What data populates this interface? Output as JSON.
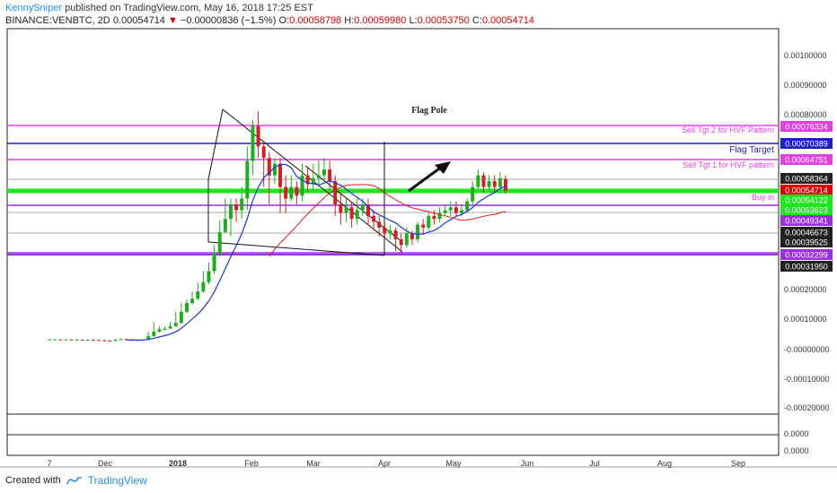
{
  "header": {
    "author": "KennySniper",
    "published_text": "published on TradingView.com, May 16, 2018 17:25 EST",
    "symbol": "BINANCE:VENBTC, 2D",
    "last_price": "0.00054714",
    "change": "−0.00000836 (−1.5%)",
    "open_label": "O:",
    "open": "0.00058798",
    "high_label": "H:",
    "high": "0.00059980",
    "low_label": "L:",
    "low": "0.00053750",
    "close_label": "C:",
    "close": "0.00054714"
  },
  "footer": {
    "created_with": "Created with",
    "brand": "TradingView"
  },
  "colors": {
    "magenta": "#e040e0",
    "blue": "#1f1fbf",
    "green": "#1ee61e",
    "red": "#dd0000",
    "purple": "#9b2fe0",
    "up": "#22aa22",
    "down": "#cc2222",
    "ma_blue": "#1a35d6",
    "ma_red": "#e01c1c"
  },
  "chart_data": {
    "type": "candlestick",
    "y_ticks": [
      "0.00100000",
      "0.00090000",
      "0.00080000",
      "0.00020000",
      "0.00010000",
      "-0.00000000",
      "-0.00010000",
      "-0.00020000"
    ],
    "sub_ticks": [
      "0.0000",
      "0.0000"
    ],
    "x_ticks": [
      "7",
      "Dec",
      "2018",
      "Feb",
      "Mar",
      "Apr",
      "May",
      "Jun",
      "Jul",
      "Aug",
      "Sep"
    ],
    "annotations": {
      "flag_pole": "Flag Pole"
    },
    "levels": [
      {
        "label": "Sell Tgt 2 for HVF Pattern",
        "value": "0.00076334",
        "color": "#e040e0"
      },
      {
        "label": "Flag Target",
        "value": "0.00070389",
        "color": "#1f1fbf"
      },
      {
        "label": "Sell Tgt 1 for HVF pattern",
        "value": "0.00064751",
        "color": "#e040e0"
      },
      {
        "label": "Buy in",
        "value": "0.00054122",
        "color": "#1ee61e"
      },
      {
        "label": "",
        "value": "0.00032299",
        "color": "#9b2fe0"
      }
    ],
    "price_tags": [
      {
        "value": "0.00076334",
        "bg": "#e040e0"
      },
      {
        "value": "0.00070389",
        "bg": "#1f1fbf"
      },
      {
        "value": "0.00064751",
        "bg": "#e040e0"
      },
      {
        "value": "0.00058364",
        "bg": "#222222"
      },
      {
        "value": "0.00054714",
        "bg": "#dd0000"
      },
      {
        "value": "0.00054122",
        "bg": "#1ee61e"
      },
      {
        "value": "0.00053623",
        "bg": "#1ee61e"
      },
      {
        "value": "0.00049341",
        "bg": "#9b2fe0"
      },
      {
        "value": "0.00046673",
        "bg": "#222222"
      },
      {
        "value": "0.00039525",
        "bg": "#222222"
      },
      {
        "value": "0.00032299",
        "bg": "#9b2fe0"
      },
      {
        "value": "0.00031950",
        "bg": "#222222"
      }
    ],
    "candles_note_unit": "price in BTC",
    "candles": [
      [
        3.4e-05,
        3.5e-05,
        3.6e-05,
        3.3e-05
      ],
      [
        3.5e-05,
        3.5e-05,
        3.6e-05,
        3.4e-05
      ],
      [
        3.5e-05,
        3.4e-05,
        3.6e-05,
        3.3e-05
      ],
      [
        3.4e-05,
        3.5e-05,
        3.6e-05,
        3.4e-05
      ],
      [
        3.5e-05,
        3.4e-05,
        3.5e-05,
        3.3e-05
      ],
      [
        3.4e-05,
        3.4e-05,
        3.5e-05,
        3.3e-05
      ],
      [
        3.4e-05,
        3.3e-05,
        3.5e-05,
        3.2e-05
      ],
      [
        3.3e-05,
        3.4e-05,
        3.5e-05,
        3.2e-05
      ],
      [
        3.4e-05,
        3.3e-05,
        3.4e-05,
        3.1e-05
      ],
      [
        3.3e-05,
        3.2e-05,
        3.4e-05,
        3e-05
      ],
      [
        3.2e-05,
        3.1e-05,
        3.3e-05,
        2.9e-05
      ],
      [
        3.1e-05,
        3e-05,
        3.2e-05,
        2.8e-05
      ],
      [
        3e-05,
        3.4e-05,
        3.6e-05,
        2.9e-05
      ],
      [
        3.4e-05,
        3.6e-05,
        3.8e-05,
        3.3e-05
      ],
      [
        3.6e-05,
        3.5e-05,
        3.8e-05,
        3.4e-05
      ],
      [
        3.5e-05,
        3.1e-05,
        3.6e-05,
        3e-05
      ],
      [
        3.1e-05,
        3.3e-05,
        3.4e-05,
        3e-05
      ],
      [
        3.3e-05,
        3.4e-05,
        3.5e-05,
        3.2e-05
      ],
      [
        3.4e-05,
        4.6e-05,
        6e-05,
        3.3e-05
      ],
      [
        4.6e-05,
        6.2e-05,
        9.5e-05,
        4.4e-05
      ],
      [
        6.2e-05,
        7e-05,
        8e-05,
        5.8e-05
      ],
      [
        7e-05,
        7.2e-05,
        8e-05,
        6.6e-05
      ],
      [
        7.2e-05,
        8e-05,
        9.6e-05,
        7e-05
      ],
      [
        8e-05,
        9.2e-05,
        0.00013,
        7.8e-05
      ],
      [
        9.2e-05,
        0.00013,
        0.00016,
        8.8e-05
      ],
      [
        0.00013,
        0.00016,
        0.000172,
        0.000125
      ],
      [
        0.00016,
        0.000175,
        0.0002,
        0.000155
      ],
      [
        0.000175,
        0.0002,
        0.00023,
        0.00017
      ],
      [
        0.0002,
        0.000232,
        0.00027,
        0.000195
      ],
      [
        0.000232,
        0.00027,
        0.0003,
        0.000225
      ],
      [
        0.00027,
        0.00033,
        0.00036,
        0.00026
      ],
      [
        0.00033,
        0.000405,
        0.000445,
        0.00032
      ],
      [
        0.000405,
        0.00045,
        0.00052,
        0.0004
      ],
      [
        0.00045,
        0.0005,
        0.00052,
        0.00039
      ],
      [
        0.0005,
        0.00048,
        0.00052,
        0.00044
      ],
      [
        0.00048,
        0.00052,
        0.00056,
        0.00045
      ],
      [
        0.00052,
        0.00065,
        0.0007,
        0.00048
      ],
      [
        0.00065,
        0.00077,
        0.00079,
        0.0006
      ],
      [
        0.00077,
        0.0007,
        0.00082,
        0.00066
      ],
      [
        0.0007,
        0.00066,
        0.00072,
        0.00056
      ],
      [
        0.00066,
        0.0006,
        0.00068,
        0.0005
      ],
      [
        0.0006,
        0.00064,
        0.00066,
        0.00057
      ],
      [
        0.00064,
        0.00056,
        0.00066,
        0.00047
      ],
      [
        0.00056,
        0.00052,
        0.0006,
        0.00047
      ],
      [
        0.00052,
        0.00056,
        0.0006,
        0.00051
      ],
      [
        0.00056,
        0.00053,
        0.00058,
        0.0005
      ],
      [
        0.00053,
        0.0006,
        0.00064,
        0.00051
      ],
      [
        0.0006,
        0.00057,
        0.00063,
        0.00054
      ],
      [
        0.00057,
        0.00059,
        0.00064,
        0.00055
      ],
      [
        0.00059,
        0.0006,
        0.00065,
        0.00056
      ],
      [
        0.0006,
        0.00062,
        0.00066,
        0.00058
      ],
      [
        0.00062,
        0.00058,
        0.00065,
        0.00055
      ],
      [
        0.00058,
        0.0005,
        0.0006,
        0.00046
      ],
      [
        0.0005,
        0.00047,
        0.00054,
        0.00043
      ],
      [
        0.00047,
        0.00049,
        0.00052,
        0.00044
      ],
      [
        0.00049,
        0.00045,
        0.00051,
        0.00042
      ],
      [
        0.00045,
        0.00048,
        0.00052,
        0.00043
      ],
      [
        0.00048,
        0.0005,
        0.00052,
        0.00046
      ],
      [
        0.0005,
        0.00046,
        0.00052,
        0.00043
      ],
      [
        0.00046,
        0.00044,
        0.00048,
        0.00041
      ],
      [
        0.00044,
        0.00042,
        0.00046,
        0.00039
      ],
      [
        0.00042,
        0.0004,
        0.00044,
        0.00038
      ],
      [
        0.0004,
        0.00041,
        0.00043,
        0.00038
      ],
      [
        0.00041,
        0.00038,
        0.00042,
        0.00034
      ],
      [
        0.00038,
        0.00036,
        0.0004,
        0.00033
      ],
      [
        0.00036,
        0.0004,
        0.00042,
        0.00035
      ],
      [
        0.0004,
        0.00038,
        0.00041,
        0.00036
      ],
      [
        0.00038,
        0.00043,
        0.00044,
        0.00037
      ],
      [
        0.00043,
        0.00042,
        0.00045,
        0.0004
      ],
      [
        0.00042,
        0.00046,
        0.00047,
        0.00041
      ],
      [
        0.00046,
        0.00045,
        0.00048,
        0.00043
      ],
      [
        0.00045,
        0.00047,
        0.00049,
        0.00044
      ],
      [
        0.00047,
        0.00048,
        0.0005,
        0.00046
      ],
      [
        0.00048,
        0.00049,
        0.00051,
        0.00046
      ],
      [
        0.00049,
        0.00047,
        0.00051,
        0.00046
      ],
      [
        0.00047,
        0.00048,
        0.0005,
        0.00046
      ],
      [
        0.00048,
        0.00051,
        0.00052,
        0.00047
      ],
      [
        0.00051,
        0.00056,
        0.00058,
        0.0005
      ],
      [
        0.00056,
        0.0006,
        0.00062,
        0.00055
      ],
      [
        0.0006,
        0.00056,
        0.00061,
        0.00054
      ],
      [
        0.00056,
        0.00058,
        0.0006,
        0.00055
      ],
      [
        0.00058,
        0.00056,
        0.0006,
        0.00054
      ],
      [
        0.00056,
        0.00059,
        0.00061,
        0.00055
      ],
      [
        0.000588,
        0.000547,
        0.0006,
        0.000537
      ]
    ]
  }
}
